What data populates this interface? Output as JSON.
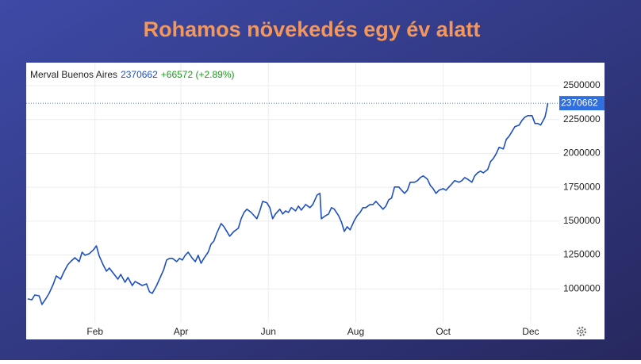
{
  "title": "Rohamos növekedés egy év alatt",
  "chart_data": {
    "type": "line",
    "series": [
      {
        "name": "Merval Buenos Aires",
        "color": "#1e4fc0",
        "x": [
          -16,
          -13,
          -11,
          -8,
          -6,
          -3,
          -1,
          2,
          4,
          7,
          9,
          12,
          14,
          17,
          20,
          22,
          24,
          27,
          30,
          32,
          34,
          37,
          39,
          41,
          44,
          47,
          49,
          52,
          54,
          57,
          59,
          62,
          64,
          67,
          69,
          71,
          74,
          76,
          79,
          81,
          83,
          85,
          88,
          90,
          92,
          94,
          96,
          99,
          101,
          103,
          105,
          107,
          110,
          112,
          114,
          116,
          119,
          121,
          123,
          125,
          128,
          131,
          133,
          135,
          137,
          140,
          142,
          144,
          146,
          148,
          151,
          153,
          155,
          157,
          160,
          162,
          164,
          166,
          168,
          171,
          173,
          175,
          178,
          181,
          183,
          186,
          188,
          189,
          192,
          194,
          196,
          198,
          201,
          203,
          205,
          207,
          209,
          212,
          214,
          216,
          218,
          220,
          223,
          225,
          227,
          229,
          232,
          234,
          236,
          238,
          240,
          243,
          245,
          247,
          249,
          251,
          254,
          256,
          258,
          260,
          263,
          265,
          267,
          269,
          271,
          274,
          276,
          278,
          280,
          282,
          285,
          287,
          289,
          291,
          294,
          296,
          298,
          300,
          302,
          305,
          307,
          309,
          311,
          313,
          316,
          318,
          320,
          322,
          324,
          327,
          329,
          331,
          333,
          336,
          338,
          340,
          342,
          345,
          346,
          347
        ],
        "values": [
          926000,
          920000,
          955000,
          949000,
          885000,
          932000,
          967000,
          1037000,
          1096000,
          1072000,
          1119000,
          1178000,
          1201000,
          1230000,
          1201000,
          1271000,
          1248000,
          1260000,
          1289000,
          1318000,
          1242000,
          1172000,
          1131000,
          1154000,
          1113000,
          1072000,
          1107000,
          1049000,
          1084000,
          1025000,
          1055000,
          1037000,
          1025000,
          1037000,
          979000,
          967000,
          1025000,
          1072000,
          1143000,
          1213000,
          1225000,
          1225000,
          1201000,
          1225000,
          1213000,
          1248000,
          1271000,
          1225000,
          1201000,
          1248000,
          1189000,
          1225000,
          1271000,
          1330000,
          1353000,
          1412000,
          1482000,
          1459000,
          1424000,
          1389000,
          1424000,
          1447000,
          1518000,
          1564000,
          1588000,
          1564000,
          1541000,
          1518000,
          1576000,
          1646000,
          1635000,
          1600000,
          1518000,
          1553000,
          1588000,
          1553000,
          1576000,
          1564000,
          1600000,
          1576000,
          1611000,
          1582000,
          1623000,
          1600000,
          1623000,
          1693000,
          1705000,
          1518000,
          1541000,
          1553000,
          1600000,
          1588000,
          1541000,
          1494000,
          1424000,
          1459000,
          1436000,
          1506000,
          1541000,
          1564000,
          1600000,
          1600000,
          1623000,
          1623000,
          1646000,
          1623000,
          1588000,
          1611000,
          1658000,
          1670000,
          1752000,
          1752000,
          1728000,
          1705000,
          1728000,
          1787000,
          1787000,
          1799000,
          1822000,
          1834000,
          1810000,
          1764000,
          1740000,
          1705000,
          1728000,
          1740000,
          1728000,
          1752000,
          1775000,
          1799000,
          1787000,
          1799000,
          1822000,
          1810000,
          1787000,
          1834000,
          1857000,
          1869000,
          1857000,
          1881000,
          1939000,
          1963000,
          1998000,
          2045000,
          2033000,
          2103000,
          2127000,
          2162000,
          2197000,
          2209000,
          2244000,
          2267000,
          2279000,
          2279000,
          2221000,
          2221000,
          2209000,
          2267000,
          2314000,
          2370662
        ]
      }
    ],
    "change": "+66572 (+2.89%)",
    "change_color": "#1a9a1a",
    "xlim": [
      -17,
      355
    ],
    "xticks": [
      {
        "value": 31,
        "label": "Feb"
      },
      {
        "value": 91,
        "label": "Apr"
      },
      {
        "value": 152,
        "label": "Jun"
      },
      {
        "value": 213,
        "label": "Aug"
      },
      {
        "value": 274,
        "label": "Oct"
      },
      {
        "value": 335,
        "label": "Dec"
      }
    ],
    "ylim": [
      750000,
      2664000
    ],
    "yticks": [
      1000000,
      1250000,
      1500000,
      1750000,
      2000000,
      2250000,
      2500000
    ],
    "grid": true
  }
}
